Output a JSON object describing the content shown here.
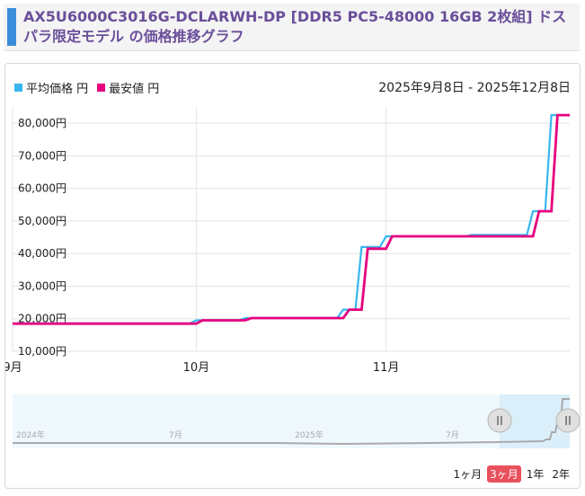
{
  "title": "AX5U6000C3016G-DCLARWH-DP [DDR5 PC5-48000 16GB 2枚組] ドスパラ限定モデル の価格推移グラフ",
  "legend": [
    {
      "label": "平均価格 円",
      "color": "#38b6ef"
    },
    {
      "label": "最安値 円",
      "color": "#e6007e"
    }
  ],
  "date_range": "2025年9月8日 - 2025年12月8日",
  "range_buttons": [
    {
      "label": "1ヶ月",
      "active": false
    },
    {
      "label": "3ヶ月",
      "active": true
    },
    {
      "label": "1年",
      "active": false
    },
    {
      "label": "2年",
      "active": false
    }
  ],
  "navigator": {
    "labels": [
      "2024年",
      "7月",
      "2025年",
      "7月"
    ],
    "line_color": "#aaaaaa",
    "handle_label": "II"
  },
  "chart_data": {
    "type": "line",
    "x_unit": "date",
    "xlim": [
      "2025-09-08",
      "2025-12-08"
    ],
    "ylim": [
      10000,
      85000
    ],
    "y_ticks": [
      10000,
      20000,
      30000,
      40000,
      50000,
      60000,
      70000,
      80000
    ],
    "y_tick_labels": [
      "10,000円",
      "20,000円",
      "30,000円",
      "40,000円",
      "50,000円",
      "60,000円",
      "70,000円",
      "80,000円"
    ],
    "x_ticks": [
      "2025-09-08",
      "2025-10-08",
      "2025-11-08"
    ],
    "x_tick_labels": [
      "9月",
      "10月",
      "11月"
    ],
    "grid": true,
    "series": [
      {
        "name": "平均価格 円",
        "color": "#38b6ef",
        "points": [
          [
            "2025-09-08",
            18600
          ],
          [
            "2025-10-07",
            18600
          ],
          [
            "2025-10-08",
            19500
          ],
          [
            "2025-10-15",
            19500
          ],
          [
            "2025-10-16",
            20200
          ],
          [
            "2025-10-31",
            20200
          ],
          [
            "2025-11-01",
            22800
          ],
          [
            "2025-11-03",
            22800
          ],
          [
            "2025-11-04",
            42000
          ],
          [
            "2025-11-05",
            42000
          ],
          [
            "2025-11-07",
            42000
          ],
          [
            "2025-11-08",
            45300
          ],
          [
            "2025-11-21",
            45300
          ],
          [
            "2025-11-22",
            45700
          ],
          [
            "2025-12-01",
            45700
          ],
          [
            "2025-12-02",
            53000
          ],
          [
            "2025-12-04",
            53000
          ],
          [
            "2025-12-05",
            82500
          ],
          [
            "2025-12-08",
            82500
          ]
        ]
      },
      {
        "name": "最安値 円",
        "color": "#e6007e",
        "points": [
          [
            "2025-09-08",
            18500
          ],
          [
            "2025-10-08",
            18500
          ],
          [
            "2025-10-09",
            19500
          ],
          [
            "2025-10-16",
            19500
          ],
          [
            "2025-10-17",
            20200
          ],
          [
            "2025-11-01",
            20200
          ],
          [
            "2025-11-02",
            22800
          ],
          [
            "2025-11-04",
            22800
          ],
          [
            "2025-11-05",
            41500
          ],
          [
            "2025-11-08",
            41500
          ],
          [
            "2025-11-09",
            45300
          ],
          [
            "2025-12-02",
            45300
          ],
          [
            "2025-12-03",
            53000
          ],
          [
            "2025-12-05",
            53000
          ],
          [
            "2025-12-06",
            82500
          ],
          [
            "2025-12-08",
            82500
          ]
        ]
      }
    ]
  }
}
